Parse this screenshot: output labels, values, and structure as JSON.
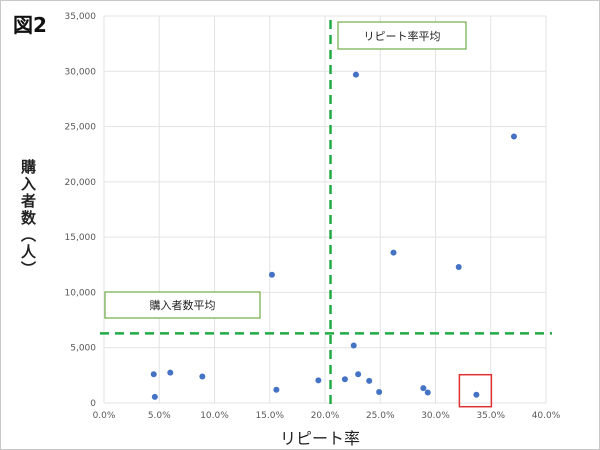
{
  "figure_label": "図2",
  "chart_data": {
    "type": "scatter",
    "title": "",
    "xlabel": "リピート率",
    "ylabel": "購入者数（人）",
    "xlim": [
      0,
      0.4
    ],
    "ylim": [
      0,
      35000
    ],
    "x_ticks": [
      0,
      0.05,
      0.1,
      0.15,
      0.2,
      0.25,
      0.3,
      0.35,
      0.4
    ],
    "x_tick_labels": [
      "0.0%",
      "5.0%",
      "10.0%",
      "15.0%",
      "20.0%",
      "25.0%",
      "30.0%",
      "35.0%",
      "40.0%"
    ],
    "y_ticks": [
      0,
      5000,
      10000,
      15000,
      20000,
      25000,
      30000,
      35000
    ],
    "y_tick_labels": [
      "0",
      "5,000",
      "10,000",
      "15,000",
      "20,000",
      "25,000",
      "30,000",
      "35,000"
    ],
    "grid": true,
    "point_color": "#4472c4",
    "points": [
      {
        "x": 0.045,
        "y": 2600
      },
      {
        "x": 0.046,
        "y": 550
      },
      {
        "x": 0.06,
        "y": 2750
      },
      {
        "x": 0.089,
        "y": 2400
      },
      {
        "x": 0.152,
        "y": 11600
      },
      {
        "x": 0.156,
        "y": 1200
      },
      {
        "x": 0.194,
        "y": 2050
      },
      {
        "x": 0.218,
        "y": 2150
      },
      {
        "x": 0.226,
        "y": 5200
      },
      {
        "x": 0.228,
        "y": 29700
      },
      {
        "x": 0.23,
        "y": 2600
      },
      {
        "x": 0.24,
        "y": 2000
      },
      {
        "x": 0.249,
        "y": 1000
      },
      {
        "x": 0.262,
        "y": 13600
      },
      {
        "x": 0.289,
        "y": 1350
      },
      {
        "x": 0.293,
        "y": 950
      },
      {
        "x": 0.321,
        "y": 12300
      },
      {
        "x": 0.337,
        "y": 750
      },
      {
        "x": 0.371,
        "y": 24100
      }
    ],
    "reference_lines": [
      {
        "orientation": "vertical",
        "value": 0.205,
        "label": "リピート率平均",
        "color": "#22aa44"
      },
      {
        "orientation": "horizontal",
        "value": 6300,
        "label": "購入者数平均",
        "color": "#22aa44"
      }
    ],
    "highlight": {
      "x": 0.337,
      "y": 750,
      "color": "#e03030"
    },
    "annotation_border_color": "#70ad47"
  }
}
